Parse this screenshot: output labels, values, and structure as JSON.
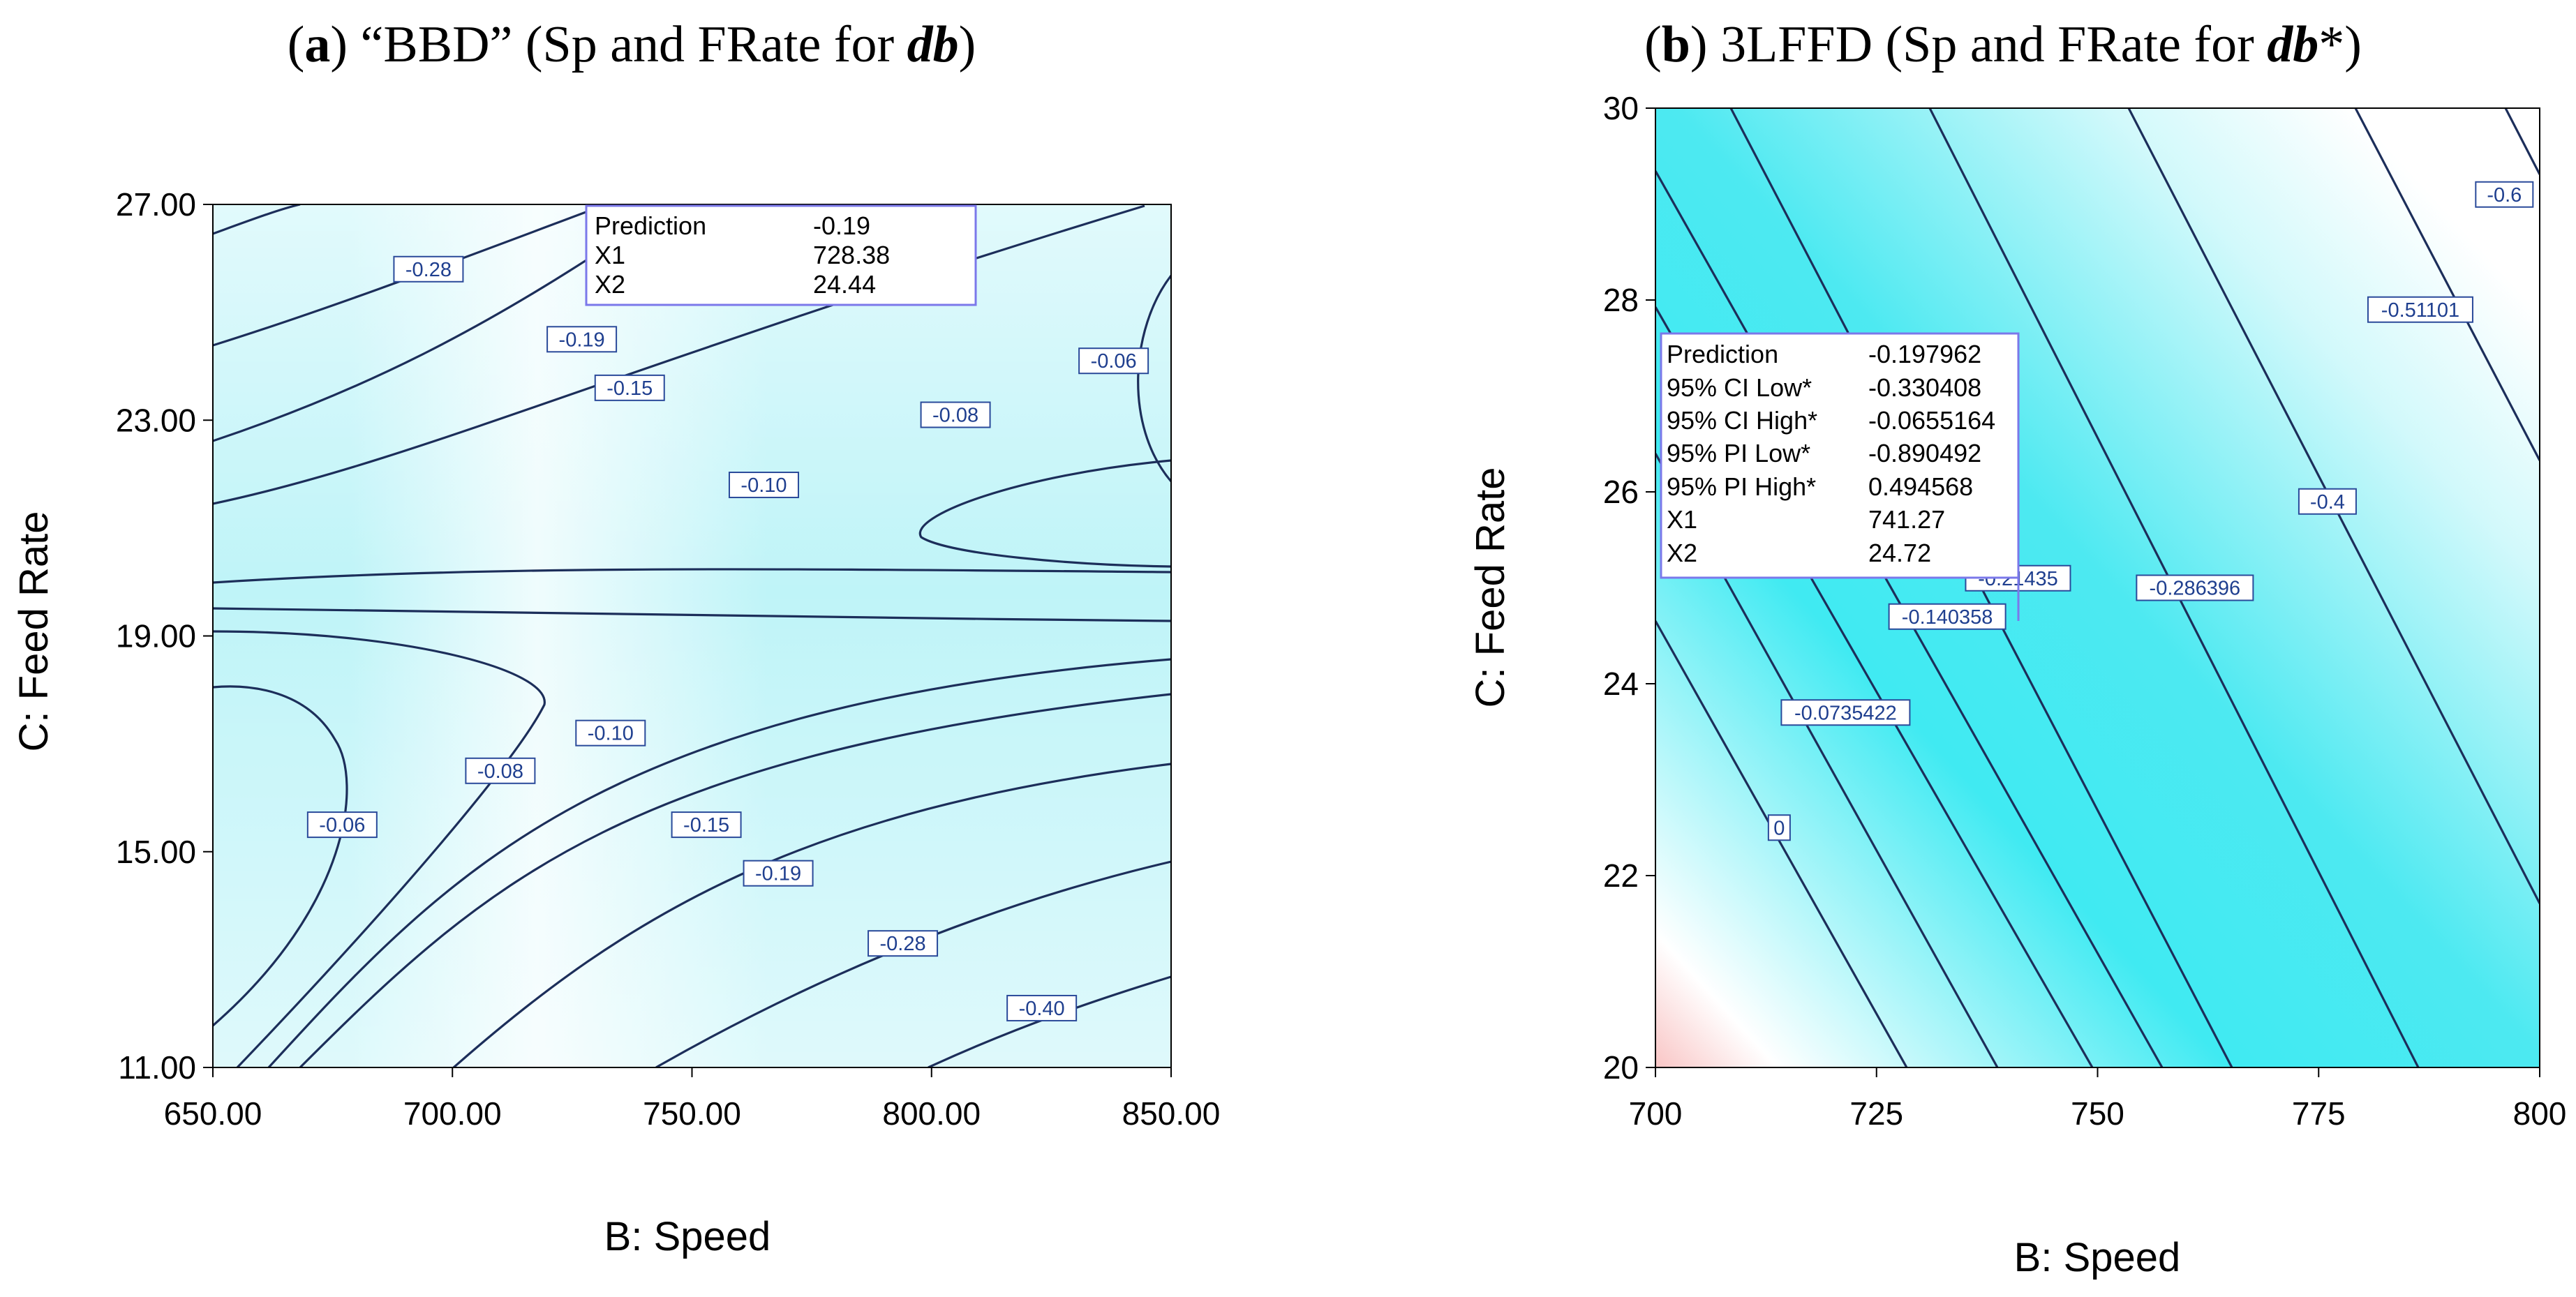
{
  "chart_data": [
    {
      "type": "contour",
      "title": {
        "letter": "a",
        "open": "(",
        "close": ")",
        "main": " “BBD” (Sp and FRate for ",
        "var": "db",
        "suffix": ")"
      },
      "xlabel": "B: Speed",
      "ylabel": "C: Feed Rate",
      "xlim": [
        650,
        850
      ],
      "ylim": [
        11,
        27
      ],
      "xticks": [
        "650.00",
        "700.00",
        "750.00",
        "800.00",
        "850.00"
      ],
      "xtick_values": [
        650,
        700,
        750,
        800,
        850
      ],
      "yticks": [
        "11.00",
        "15.00",
        "19.00",
        "23.00",
        "27.00"
      ],
      "ytick_values": [
        11,
        15,
        19,
        23,
        27
      ],
      "contour_labels": [
        {
          "text": "-0.28",
          "x": 695,
          "y": 25.8
        },
        {
          "text": "-0.19",
          "x": 727,
          "y": 24.5
        },
        {
          "text": "-0.15",
          "x": 737,
          "y": 23.6
        },
        {
          "text": "-0.10",
          "x": 765,
          "y": 21.8
        },
        {
          "text": "-0.08",
          "x": 805,
          "y": 23.1
        },
        {
          "text": "-0.06",
          "x": 838,
          "y": 24.1
        },
        {
          "text": "-0.10",
          "x": 733,
          "y": 17.2
        },
        {
          "text": "-0.08",
          "x": 710,
          "y": 16.5
        },
        {
          "text": "-0.06",
          "x": 677,
          "y": 15.5
        },
        {
          "text": "-0.15",
          "x": 753,
          "y": 15.5
        },
        {
          "text": "-0.19",
          "x": 768,
          "y": 14.6
        },
        {
          "text": "-0.28",
          "x": 794,
          "y": 13.3
        },
        {
          "text": "-0.40",
          "x": 823,
          "y": 12.1
        }
      ],
      "prediction_box": [
        {
          "label": "Prediction",
          "value": "-0.19"
        },
        {
          "label": "X1",
          "value": "728.38"
        },
        {
          "label": "X2",
          "value": "24.44"
        }
      ]
    },
    {
      "type": "contour",
      "title": {
        "letter": "b",
        "open": "(",
        "close": ")",
        "main": " 3LFFD (Sp and FRate for ",
        "var": "db",
        "suffix": "*)"
      },
      "xlabel": "B: Speed",
      "ylabel": "C: Feed Rate",
      "xlim": [
        700,
        800
      ],
      "ylim": [
        20,
        30
      ],
      "xticks": [
        "700",
        "725",
        "750",
        "775",
        "800"
      ],
      "xtick_values": [
        700,
        725,
        750,
        775,
        800
      ],
      "yticks": [
        "20",
        "22",
        "24",
        "26",
        "28",
        "30"
      ],
      "ytick_values": [
        20,
        22,
        24,
        26,
        28,
        30
      ],
      "contour_labels": [
        {
          "text": "-0.6",
          "x": 796,
          "y": 29.1
        },
        {
          "text": "-0.51101",
          "x": 786.5,
          "y": 27.9
        },
        {
          "text": "-0.4",
          "x": 776,
          "y": 25.9
        },
        {
          "text": "-0.286396",
          "x": 761,
          "y": 25
        },
        {
          "text": "-0.21435",
          "x": 741,
          "y": 25.1
        },
        {
          "text": "-0.140358",
          "x": 733,
          "y": 24.7
        },
        {
          "text": "-0.0735422",
          "x": 721.5,
          "y": 23.7
        },
        {
          "text": "0",
          "x": 714,
          "y": 22.5
        }
      ],
      "prediction_box": [
        {
          "label": "Prediction",
          "value": "-0.197962"
        },
        {
          "label": "95% CI Low*",
          "value": "-0.330408"
        },
        {
          "label": "95% CI High*",
          "value": "-0.0655164"
        },
        {
          "label": "95% PI Low*",
          "value": "-0.890492"
        },
        {
          "label": "95% PI High*",
          "value": "0.494568"
        },
        {
          "label": "X1",
          "value": "741.27"
        },
        {
          "label": "X2",
          "value": "24.72"
        }
      ]
    }
  ]
}
